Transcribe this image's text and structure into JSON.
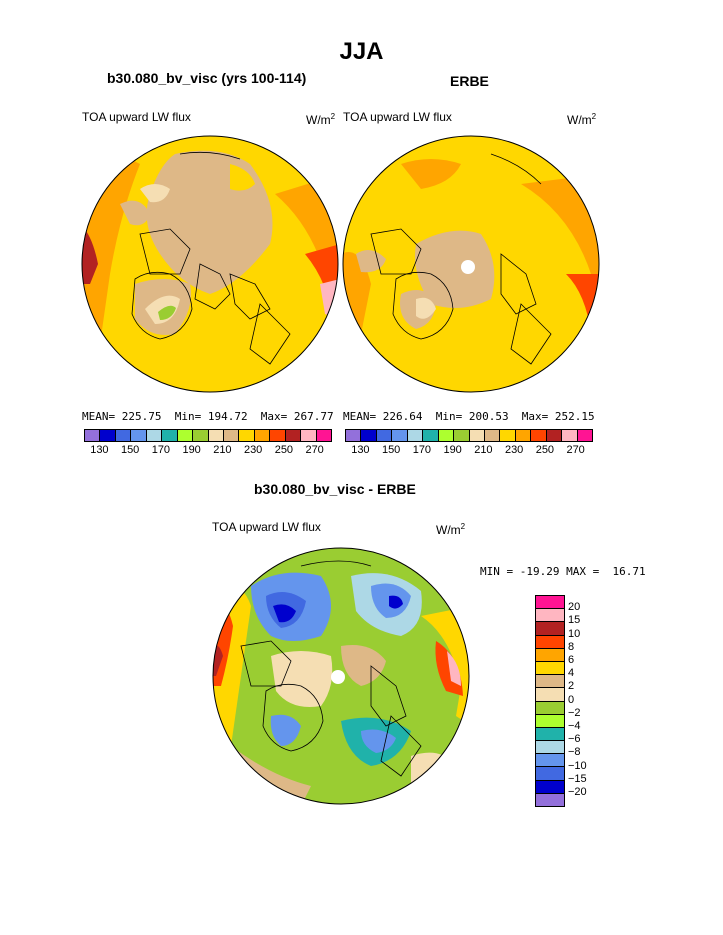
{
  "title": "JJA",
  "top_left": {
    "case": "b30.080_bv_visc (yrs 100-114)",
    "variable": "TOA upward LW flux",
    "units_base": "W/m",
    "units_exp": "2",
    "stats": "MEAN= 225.75  Min= 194.72  Max= 267.77"
  },
  "top_right": {
    "case": "ERBE",
    "variable": "TOA upward LW flux",
    "units_base": "W/m",
    "units_exp": "2",
    "stats": "MEAN= 226.64  Min= 200.53  Max= 252.15"
  },
  "bottom": {
    "case": "b30.080_bv_visc - ERBE",
    "variable": "TOA upward LW flux",
    "units_base": "W/m",
    "units_exp": "2",
    "stats": "MIN = -19.29 MAX =  16.71"
  },
  "abs_colorbar": {
    "colors": [
      "#9370db",
      "#0000cd",
      "#4169e1",
      "#6495ed",
      "#add8e6",
      "#20b2aa",
      "#adff2f",
      "#9acd32",
      "#f5deb3",
      "#deb887",
      "#ffd700",
      "#ffa500",
      "#ff4500",
      "#b22222",
      "#ffb6c1",
      "#ff1493"
    ],
    "labels": [
      "130",
      "150",
      "170",
      "190",
      "210",
      "230",
      "250",
      "270"
    ]
  },
  "diff_colorbar": {
    "colors": [
      "#ff1493",
      "#ffb6c1",
      "#b22222",
      "#ff4500",
      "#ffa500",
      "#ffd700",
      "#deb887",
      "#f5deb3",
      "#9acd32",
      "#adff2f",
      "#20b2aa",
      "#add8e6",
      "#6495ed",
      "#4169e1",
      "#0000cd",
      "#9370db"
    ],
    "labels": [
      "20",
      "15",
      "10",
      "8",
      "6",
      "4",
      "2",
      "0",
      "−2",
      "−4",
      "−6",
      "−8",
      "−10",
      "−15",
      "−20"
    ]
  }
}
